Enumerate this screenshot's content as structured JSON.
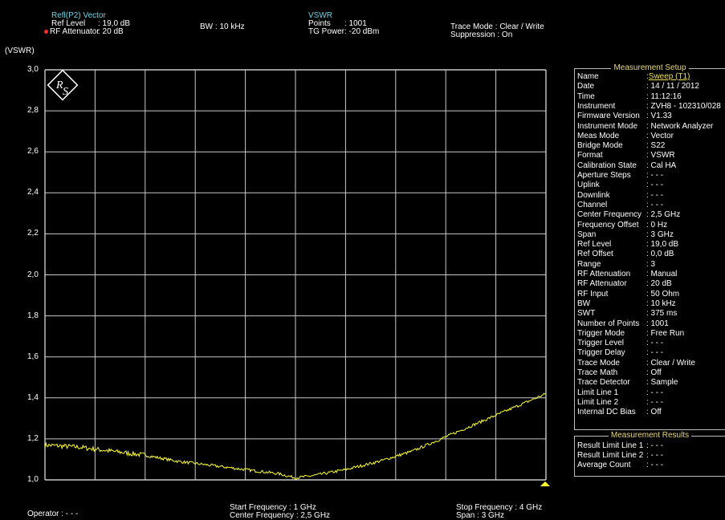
{
  "header": {
    "col1": {
      "title": "Refl(P2) Vector",
      "ref_level_label": "Ref Level",
      "ref_level_value": ": 19,0 dB",
      "rf_att_label": "RF Attenuator",
      "rf_att_value": ": 20   dB"
    },
    "col2": {
      "bw": "BW : 10 kHz"
    },
    "col3": {
      "title": "VSWR",
      "points_label": "Points",
      "points_value": ": 1001",
      "tg_label": "TG Power",
      "tg_value": ": -20 dBm"
    },
    "col4": {
      "trace_mode": "Trace Mode : Clear / Write",
      "suppression": "Suppression : On"
    },
    "unit_label": "(VSWR)"
  },
  "footer": {
    "operator": "Operator : - - -",
    "start_freq": "Start Frequency  : 1   GHz",
    "center_freq": "Center Frequency : 2,5 GHz",
    "stop_freq": "Stop Frequency : 4 GHz",
    "span": "Span            : 3 GHz"
  },
  "measurement_setup": {
    "title": "Measurement Setup",
    "rows": [
      [
        "Name",
        ": ",
        "Sweep (T1)"
      ],
      [
        "Date",
        ": 14 / 11 / 2012",
        ""
      ],
      [
        "Time",
        ": 11:12:16",
        ""
      ],
      [
        "Instrument",
        ": ZVH8 - 102310/028",
        ""
      ],
      [
        "Firmware Version",
        ": V1.33",
        ""
      ],
      [
        "Instrument Mode",
        ": Network Analyzer",
        ""
      ],
      [
        "Meas Mode",
        ": Vector",
        ""
      ],
      [
        "Bridge Mode",
        ": S22",
        ""
      ],
      [
        "Format",
        ": VSWR",
        ""
      ],
      [
        "Calibration State",
        ": Cal HA",
        ""
      ],
      [
        "Aperture Steps",
        ": - - -",
        ""
      ],
      [
        "Uplink",
        ": - - -",
        ""
      ],
      [
        "Downlink",
        ": - - -",
        ""
      ],
      [
        "Channel",
        ": - - -",
        ""
      ],
      [
        "Center Frequency",
        ":      2,5 GHz",
        ""
      ],
      [
        "Frequency Offset",
        ":       0   Hz",
        ""
      ],
      [
        "Span",
        ":       3   GHz",
        ""
      ],
      [
        "Ref Level",
        ":      19,0 dB",
        ""
      ],
      [
        "Ref Offset",
        ":       0,0 dB",
        ""
      ],
      [
        "Range",
        ":       3",
        ""
      ],
      [
        "RF Attenuation",
        ": Manual",
        ""
      ],
      [
        "RF Attenuator",
        ":      20   dB",
        ""
      ],
      [
        "RF Input",
        ": 50 Ohm",
        ""
      ],
      [
        "BW",
        ":      10   kHz",
        ""
      ],
      [
        "SWT",
        ":     375   ms",
        ""
      ],
      [
        "Number of Points",
        ": 1001",
        ""
      ],
      [
        "Trigger Mode",
        ": Free Run",
        ""
      ],
      [
        "Trigger Level",
        ": - - -",
        ""
      ],
      [
        "Trigger Delay",
        ": - - -",
        ""
      ],
      [
        "Trace Mode",
        ": Clear / Write",
        ""
      ],
      [
        "Trace Math",
        ": Off",
        ""
      ],
      [
        "Trace Detector",
        ": Sample",
        ""
      ],
      [
        "Limit Line 1",
        ": - - -",
        ""
      ],
      [
        "Limit Line 2",
        ": - - -",
        ""
      ],
      [
        "Internal DC Bias",
        ": Off",
        ""
      ]
    ]
  },
  "measurement_results": {
    "title": "Measurement Results",
    "rows": [
      [
        "Result Limit Line 1",
        ": - - -"
      ],
      [
        "Result Limit Line 2",
        ": - - -"
      ],
      [
        "Average Count",
        ": - - -"
      ]
    ]
  },
  "colors": {
    "trace": "#ffff33",
    "grid": "#c8c8c8",
    "header_text": "#6fd3e6",
    "marker": "#ffff33"
  },
  "chart_data": {
    "type": "line",
    "ylabel": "(VSWR)",
    "xlim": [
      1,
      4
    ],
    "ylim": [
      1.0,
      3.0
    ],
    "y_ticks": [
      "3,0",
      "2,8",
      "2,6",
      "2,4",
      "2,2",
      "2,0",
      "1,8",
      "1,6",
      "1,4",
      "1,2",
      "1,0"
    ],
    "grid": true,
    "series": [
      {
        "x": [
          1.0,
          1.2,
          1.4,
          1.6,
          1.8,
          2.0,
          2.2,
          2.4,
          2.5,
          2.6,
          2.8,
          3.0,
          3.2,
          3.4,
          3.6,
          3.8,
          4.0
        ],
        "values": [
          1.17,
          1.16,
          1.14,
          1.12,
          1.09,
          1.07,
          1.05,
          1.03,
          1.01,
          1.02,
          1.05,
          1.09,
          1.14,
          1.21,
          1.28,
          1.35,
          1.42
        ]
      }
    ]
  }
}
